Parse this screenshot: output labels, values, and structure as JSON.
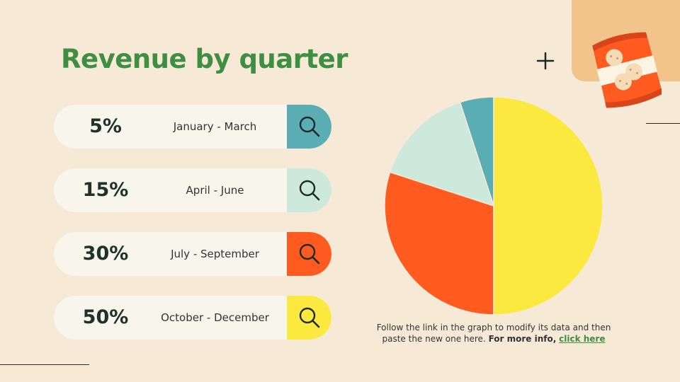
{
  "slide": {
    "title": "Revenue by quarter",
    "note_text": "Follow the link in the graph to modify its data and then paste the new one here.",
    "note_bold": "For more info,",
    "note_link": "click here"
  },
  "quarters": [
    {
      "percent": "5%",
      "period": "January - March",
      "color": "#5aaeb3"
    },
    {
      "percent": "15%",
      "period": "April - June",
      "color": "#cce9dc"
    },
    {
      "percent": "30%",
      "period": "July - September",
      "color": "#ff5a1f"
    },
    {
      "percent": "50%",
      "period": "October - December",
      "color": "#fce940"
    }
  ],
  "chart_data": {
    "type": "pie",
    "categories": [
      "January - March",
      "April - June",
      "July - September",
      "October - December"
    ],
    "values": [
      5,
      15,
      30,
      50
    ],
    "colors": [
      "#5aaeb3",
      "#cce9dc",
      "#ff5a1f",
      "#fce940"
    ],
    "order": "counterclockwise from top",
    "title": "",
    "legend": "none"
  },
  "icons": {
    "tag_icon": "magnifier-icon",
    "decor": [
      "plus-icon",
      "snack-bag-icon"
    ]
  }
}
